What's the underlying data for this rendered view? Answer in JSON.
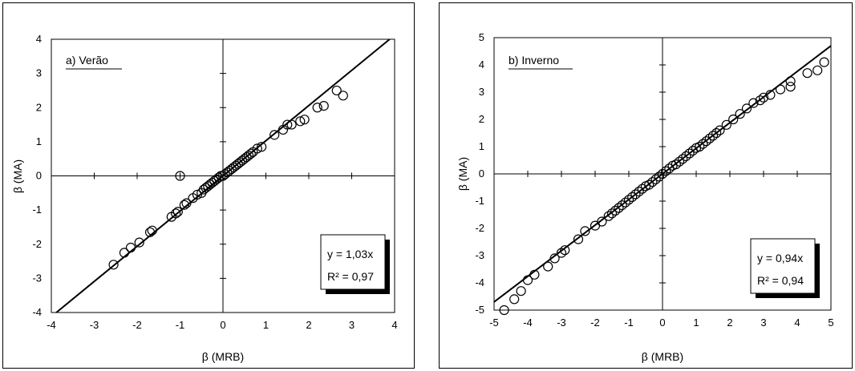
{
  "chart_data": [
    {
      "type": "scatter",
      "panel_label": "a) Verão",
      "xlabel": "β (MRB)",
      "ylabel": "β (MA)",
      "xlim": [
        -4,
        4
      ],
      "ylim": [
        -4,
        4
      ],
      "xticks": [
        -4,
        -3,
        -2,
        -1,
        0,
        1,
        2,
        3,
        4
      ],
      "yticks": [
        -4,
        -3,
        -2,
        -1,
        0,
        1,
        2,
        3,
        4
      ],
      "grid": false,
      "fit": {
        "slope": 1.03,
        "equation": "y = 1,03x",
        "r2_label": "R² = 0,97"
      },
      "points": [
        [
          -2.55,
          -2.6
        ],
        [
          -2.3,
          -2.25
        ],
        [
          -2.15,
          -2.1
        ],
        [
          -1.95,
          -1.95
        ],
        [
          -1.7,
          -1.65
        ],
        [
          -1.65,
          -1.6
        ],
        [
          -1.2,
          -1.2
        ],
        [
          -1.1,
          -1.1
        ],
        [
          -1.05,
          -1.05
        ],
        [
          -0.9,
          -0.85
        ],
        [
          -0.85,
          -0.8
        ],
        [
          -0.7,
          -0.65
        ],
        [
          -0.6,
          -0.55
        ],
        [
          -0.5,
          -0.5
        ],
        [
          -0.45,
          -0.4
        ],
        [
          -0.4,
          -0.35
        ],
        [
          -0.35,
          -0.3
        ],
        [
          -0.3,
          -0.25
        ],
        [
          -0.25,
          -0.2
        ],
        [
          -0.2,
          -0.15
        ],
        [
          -0.15,
          -0.1
        ],
        [
          -0.1,
          -0.05
        ],
        [
          -0.05,
          0.0
        ],
        [
          0.0,
          0.0
        ],
        [
          0.05,
          0.05
        ],
        [
          0.1,
          0.1
        ],
        [
          0.15,
          0.15
        ],
        [
          0.2,
          0.2
        ],
        [
          0.25,
          0.25
        ],
        [
          0.3,
          0.3
        ],
        [
          0.35,
          0.35
        ],
        [
          0.4,
          0.4
        ],
        [
          0.45,
          0.45
        ],
        [
          0.5,
          0.5
        ],
        [
          0.55,
          0.55
        ],
        [
          0.6,
          0.6
        ],
        [
          0.65,
          0.65
        ],
        [
          0.7,
          0.7
        ],
        [
          0.8,
          0.8
        ],
        [
          0.9,
          0.85
        ],
        [
          1.2,
          1.2
        ],
        [
          1.4,
          1.35
        ],
        [
          1.5,
          1.5
        ],
        [
          1.6,
          1.5
        ],
        [
          1.8,
          1.6
        ],
        [
          1.9,
          1.65
        ],
        [
          2.2,
          2.0
        ],
        [
          2.35,
          2.05
        ],
        [
          2.65,
          2.5
        ],
        [
          2.8,
          2.35
        ],
        [
          -1.0,
          0.0
        ]
      ]
    },
    {
      "type": "scatter",
      "panel_label": "b) Inverno",
      "xlabel": "β (MRB)",
      "ylabel": "β (MA)",
      "xlim": [
        -5,
        5
      ],
      "ylim": [
        -5,
        5
      ],
      "xticks": [
        -5,
        -4,
        -3,
        -2,
        -1,
        0,
        1,
        2,
        3,
        4,
        5
      ],
      "yticks": [
        -5,
        -4,
        -3,
        -2,
        -1,
        0,
        1,
        2,
        3,
        4,
        5
      ],
      "grid": false,
      "fit": {
        "slope": 0.94,
        "equation": "y = 0,94x",
        "r2_label": "R² = 0,94"
      },
      "points": [
        [
          -4.7,
          -5.0
        ],
        [
          -4.4,
          -4.6
        ],
        [
          -4.2,
          -4.3
        ],
        [
          -4.0,
          -3.9
        ],
        [
          -3.8,
          -3.7
        ],
        [
          -3.4,
          -3.4
        ],
        [
          -3.2,
          -3.1
        ],
        [
          -3.0,
          -2.9
        ],
        [
          -2.9,
          -2.8
        ],
        [
          -2.5,
          -2.4
        ],
        [
          -2.3,
          -2.1
        ],
        [
          -2.0,
          -1.9
        ],
        [
          -1.8,
          -1.75
        ],
        [
          -1.6,
          -1.55
        ],
        [
          -1.5,
          -1.45
        ],
        [
          -1.4,
          -1.35
        ],
        [
          -1.3,
          -1.25
        ],
        [
          -1.2,
          -1.15
        ],
        [
          -1.1,
          -1.05
        ],
        [
          -1.0,
          -0.95
        ],
        [
          -0.9,
          -0.85
        ],
        [
          -0.8,
          -0.75
        ],
        [
          -0.7,
          -0.65
        ],
        [
          -0.6,
          -0.55
        ],
        [
          -0.5,
          -0.45
        ],
        [
          -0.4,
          -0.4
        ],
        [
          -0.3,
          -0.3
        ],
        [
          -0.2,
          -0.2
        ],
        [
          -0.1,
          -0.1
        ],
        [
          0.0,
          0.0
        ],
        [
          0.1,
          0.1
        ],
        [
          0.2,
          0.2
        ],
        [
          0.3,
          0.3
        ],
        [
          0.4,
          0.35
        ],
        [
          0.5,
          0.45
        ],
        [
          0.6,
          0.55
        ],
        [
          0.7,
          0.65
        ],
        [
          0.8,
          0.75
        ],
        [
          0.9,
          0.85
        ],
        [
          1.0,
          0.95
        ],
        [
          1.1,
          1.0
        ],
        [
          1.2,
          1.1
        ],
        [
          1.3,
          1.2
        ],
        [
          1.4,
          1.3
        ],
        [
          1.5,
          1.4
        ],
        [
          1.6,
          1.5
        ],
        [
          1.7,
          1.6
        ],
        [
          1.9,
          1.8
        ],
        [
          2.1,
          2.0
        ],
        [
          2.3,
          2.2
        ],
        [
          2.5,
          2.4
        ],
        [
          2.7,
          2.6
        ],
        [
          2.9,
          2.7
        ],
        [
          3.0,
          2.8
        ],
        [
          3.2,
          2.9
        ],
        [
          3.5,
          3.1
        ],
        [
          3.8,
          3.2
        ],
        [
          3.8,
          3.4
        ],
        [
          4.3,
          3.7
        ],
        [
          4.6,
          3.8
        ],
        [
          4.8,
          4.1
        ]
      ]
    }
  ]
}
